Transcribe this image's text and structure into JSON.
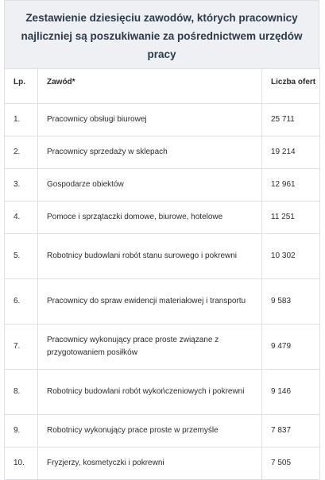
{
  "title": "Zestawienie dziesięciu zawodów, których pracownicy najliczniej są poszukiwanie za pośrednictwem urzędów pracy",
  "table": {
    "headers": [
      "Lp.",
      "Zawód*",
      "Liczba ofert"
    ],
    "rows": [
      {
        "lp": "1.",
        "zawod": "Pracownicy obsługi biurowej",
        "liczba": "25 711"
      },
      {
        "lp": "2.",
        "zawod": "Pracownicy sprzedaży w sklepach",
        "liczba": "19 214"
      },
      {
        "lp": "3.",
        "zawod": "Gospodarze obiektów",
        "liczba": "12 961"
      },
      {
        "lp": "4.",
        "zawod": "Pomoce i sprzątaczki domowe, biurowe, hotelowe",
        "liczba": "11 251"
      },
      {
        "lp": "5.",
        "zawod": "Robotnicy budowlani robót stanu surowego i pokrewni",
        "liczba": "10 302"
      },
      {
        "lp": "6.",
        "zawod": "Pracownicy do spraw ewidencji materiałowej i transportu",
        "liczba": "9 583"
      },
      {
        "lp": "7.",
        "zawod": "Pracownicy wykonujący prace proste związane z przygotowaniem posiłków",
        "liczba": "9 479"
      },
      {
        "lp": "8.",
        "zawod": "Robotnicy budowlani robót wykończeniowych i pokrewni",
        "liczba": "9 146"
      },
      {
        "lp": "9.",
        "zawod": "Robotnicy wykonujący prace proste w przemyśle",
        "liczba": "7 837"
      },
      {
        "lp": "10.",
        "zawod": "Fryzjerzy, kosmetyczki i pokrewni",
        "liczba": "7 505"
      }
    ]
  }
}
